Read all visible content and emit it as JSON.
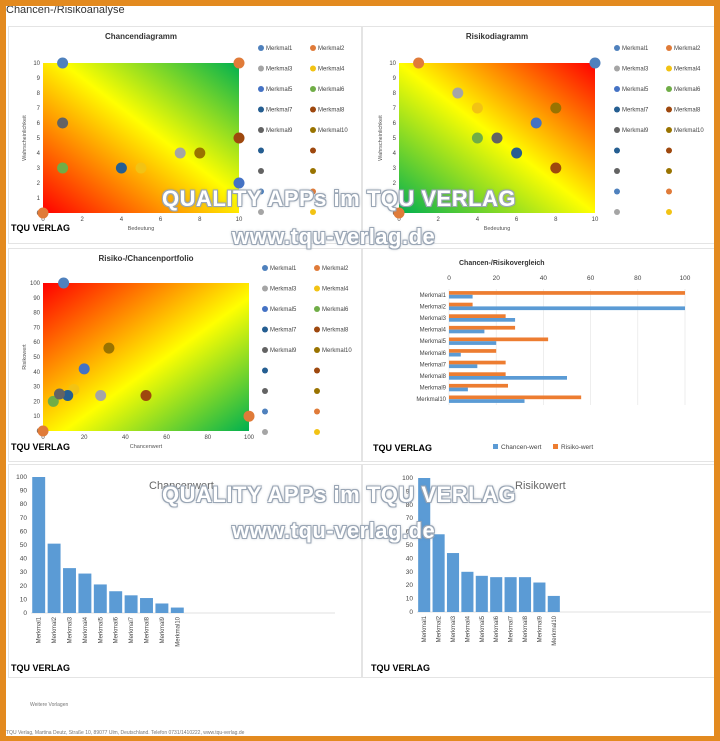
{
  "document_title": "Chancen-/Risikoanalyse",
  "brand": "TQU VERLAG",
  "watermark": {
    "line1": "QUALITY APPs im TQU VERLAG",
    "line2": "www.tqu-verlag.de"
  },
  "footer": {
    "left": "Weitere Vorlagen",
    "bottom": "TQU Verlag, Martina Deutz, Straße 10, 89077 Ulm, Deutschland. Telefon 0731/1410222, www.tqu-verlag.de"
  },
  "legend_labels": [
    "Merkmal1",
    "Merkmal2",
    "Merkmal3",
    "Merkmal4",
    "Merkmal5",
    "Merkmal6",
    "Merkmal7",
    "Merkmal8",
    "Merkmal9",
    "Merkmal10"
  ],
  "colors": {
    "series": [
      "#4f81bd",
      "#e07b39",
      "#a5a5a5",
      "#f2c314",
      "#4472c4",
      "#70ad47",
      "#255e91",
      "#9e480e",
      "#636363",
      "#997300"
    ],
    "bar_blue": "#5b9bd5",
    "bar_orange": "#ed7d31",
    "heat_green": "#00b050",
    "heat_yellow": "#ffff00",
    "heat_red": "#ff0000",
    "page_frame": "#e38a1f"
  },
  "chart_data": [
    {
      "type": "scatter",
      "title": "Chancendiagramm",
      "xlabel": "Bedeutung",
      "ylabel": "Wahrscheinlichkeit",
      "xlim": [
        0,
        10
      ],
      "ylim": [
        0,
        10
      ],
      "xticks": [
        0,
        2,
        4,
        6,
        8,
        10
      ],
      "yticks": [
        0,
        1,
        2,
        3,
        4,
        5,
        6,
        7,
        8,
        9,
        10
      ],
      "background": "heatmap-green-top-right",
      "legend": "right",
      "points": [
        {
          "x": 1,
          "y": 10
        },
        {
          "x": 10,
          "y": 10
        },
        {
          "x": 7,
          "y": 4
        },
        {
          "x": 5,
          "y": 3
        },
        {
          "x": 10,
          "y": 2
        },
        {
          "x": 1,
          "y": 3
        },
        {
          "x": 4,
          "y": 3
        },
        {
          "x": 10,
          "y": 5
        },
        {
          "x": 1,
          "y": 6
        },
        {
          "x": 8,
          "y": 4
        },
        {
          "x": 0,
          "y": 0
        }
      ],
      "point_series": [
        0,
        1,
        2,
        3,
        4,
        5,
        6,
        7,
        8,
        9,
        1
      ]
    },
    {
      "type": "scatter",
      "title": "Risikodiagramm",
      "xlabel": "Bedeutung",
      "ylabel": "Wahrscheinlichkeit",
      "xlim": [
        0,
        10
      ],
      "ylim": [
        0,
        10
      ],
      "xticks": [
        0,
        2,
        4,
        6,
        8,
        10
      ],
      "yticks": [
        0,
        1,
        2,
        3,
        4,
        5,
        6,
        7,
        8,
        9,
        10
      ],
      "background": "heatmap-red-top-right",
      "legend": "right",
      "points": [
        {
          "x": 10,
          "y": 10
        },
        {
          "x": 1,
          "y": 10
        },
        {
          "x": 3,
          "y": 8
        },
        {
          "x": 4,
          "y": 7
        },
        {
          "x": 7,
          "y": 6
        },
        {
          "x": 4,
          "y": 5
        },
        {
          "x": 6,
          "y": 4
        },
        {
          "x": 8,
          "y": 3
        },
        {
          "x": 5,
          "y": 5
        },
        {
          "x": 8,
          "y": 7
        },
        {
          "x": 0,
          "y": 0
        }
      ],
      "point_series": [
        0,
        1,
        2,
        3,
        4,
        5,
        6,
        7,
        8,
        9,
        1
      ]
    },
    {
      "type": "scatter",
      "title": "Risiko-/Chancenportfolio",
      "xlabel": "Chancenwert",
      "ylabel": "Risikowert",
      "xlim": [
        0,
        100
      ],
      "ylim": [
        0,
        100
      ],
      "xticks": [
        0,
        20,
        40,
        60,
        80,
        100
      ],
      "yticks": [
        0,
        10,
        20,
        30,
        40,
        50,
        60,
        70,
        80,
        90,
        100
      ],
      "background": "heatmap-red-top-left",
      "legend": "right",
      "points": [
        {
          "x": 10,
          "y": 100
        },
        {
          "x": 100,
          "y": 10
        },
        {
          "x": 28,
          "y": 24
        },
        {
          "x": 15,
          "y": 28
        },
        {
          "x": 20,
          "y": 42
        },
        {
          "x": 5,
          "y": 20
        },
        {
          "x": 12,
          "y": 24
        },
        {
          "x": 50,
          "y": 24
        },
        {
          "x": 8,
          "y": 25
        },
        {
          "x": 32,
          "y": 56
        },
        {
          "x": 0,
          "y": 0
        }
      ],
      "point_series": [
        0,
        1,
        2,
        3,
        4,
        5,
        6,
        7,
        8,
        9,
        1
      ]
    },
    {
      "type": "bar",
      "orientation": "horizontal",
      "title": "Chancen-/Risikovergleich",
      "categories": [
        "Merkmal1",
        "Merkmal2",
        "Merkmal3",
        "Merkmal4",
        "Merkmal5",
        "Merkmal6",
        "Merkmal7",
        "Merkmal8",
        "Merkmal9",
        "Merkmal10"
      ],
      "xlim": [
        0,
        100
      ],
      "xticks": [
        0,
        20,
        40,
        60,
        80,
        100
      ],
      "legend": "bottom",
      "series": [
        {
          "name": "Chancen-wert",
          "values": [
            10,
            100,
            28,
            15,
            20,
            5,
            12,
            50,
            8,
            32
          ]
        },
        {
          "name": "Risiko-wert",
          "values": [
            100,
            10,
            24,
            28,
            42,
            20,
            24,
            24,
            25,
            56
          ]
        }
      ]
    },
    {
      "type": "bar",
      "title": "Chancenwert",
      "categories": [
        "Merkmal1",
        "Merkmal2",
        "Merkmal3",
        "Merkmal4",
        "Merkmal5",
        "Merkmal6",
        "Merkmal7",
        "Merkmal8",
        "Merkmal9",
        "Merkmal10"
      ],
      "values": [
        100,
        51,
        33,
        29,
        21,
        16,
        13,
        11,
        7,
        4
      ],
      "ylim": [
        0,
        100
      ],
      "yticks": [
        0,
        10,
        20,
        30,
        40,
        50,
        60,
        70,
        80,
        90,
        100
      ]
    },
    {
      "type": "bar",
      "title": "Risikowert",
      "categories": [
        "Merkmal1",
        "Merkmal2",
        "Merkmal3",
        "Merkmal4",
        "Merkmal5",
        "Merkmal6",
        "Merkmal7",
        "Merkmal8",
        "Merkmal9",
        "Merkmal10"
      ],
      "values": [
        100,
        58,
        44,
        30,
        27,
        26,
        26,
        26,
        22,
        12
      ],
      "ylim": [
        0,
        100
      ],
      "yticks": [
        0,
        10,
        20,
        30,
        40,
        50,
        60,
        70,
        80,
        90,
        100
      ]
    }
  ]
}
